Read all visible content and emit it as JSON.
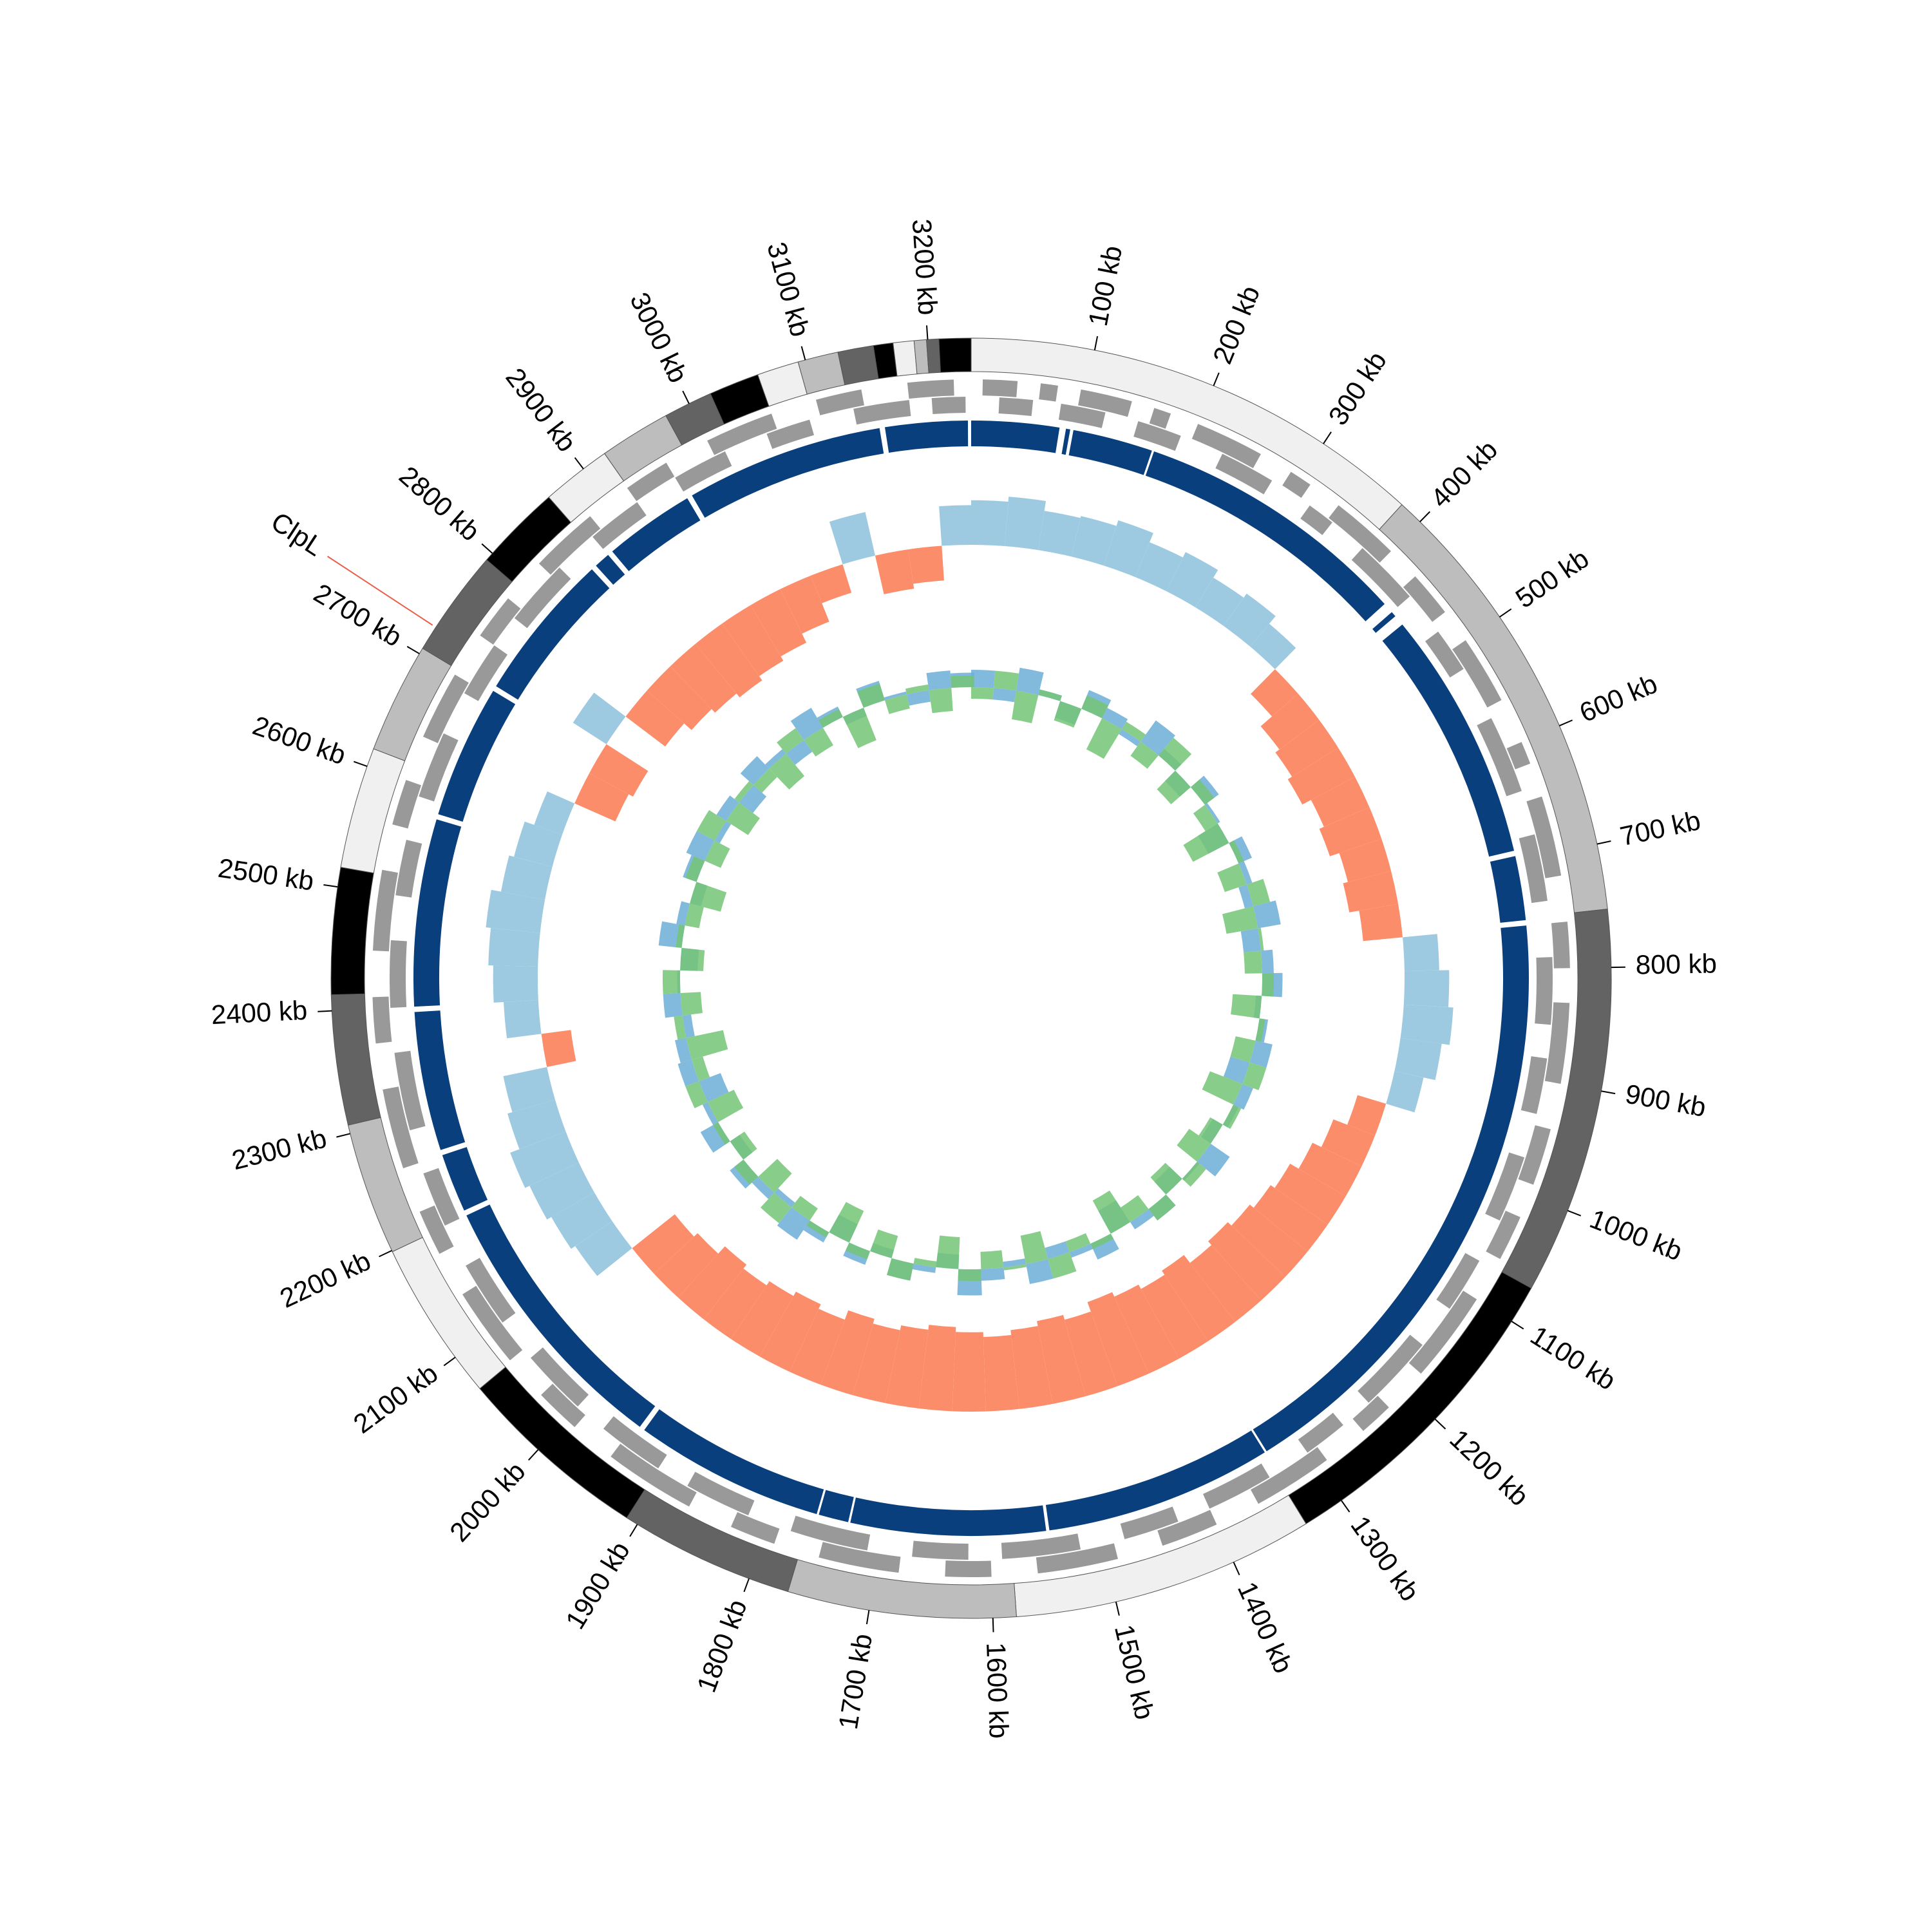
{
  "chart_data": {
    "type": "circos",
    "length": 3235,
    "ticks": [
      {
        "value": 100,
        "label": "100 kb"
      },
      {
        "value": 200,
        "label": "200 kb"
      },
      {
        "value": 300,
        "label": "300 kb"
      },
      {
        "value": 400,
        "label": "400 kb"
      },
      {
        "value": 500,
        "label": "500 kb"
      },
      {
        "value": 600,
        "label": "600 kb"
      },
      {
        "value": 700,
        "label": "700 kb"
      },
      {
        "value": 800,
        "label": "800 kb"
      },
      {
        "value": 900,
        "label": "900 kb"
      },
      {
        "value": 1000,
        "label": "1000 kb"
      },
      {
        "value": 1100,
        "label": "1100 kb"
      },
      {
        "value": 1200,
        "label": "1200 kb"
      },
      {
        "value": 1300,
        "label": "1300 kb"
      },
      {
        "value": 1400,
        "label": "1400 kb"
      },
      {
        "value": 1500,
        "label": "1500 kb"
      },
      {
        "value": 1600,
        "label": "1600 kb"
      },
      {
        "value": 1700,
        "label": "1700 kb"
      },
      {
        "value": 1800,
        "label": "1800 kb"
      },
      {
        "value": 1900,
        "label": "1900 kb"
      },
      {
        "value": 2000,
        "label": "2000 kb"
      },
      {
        "value": 2100,
        "label": "2100 kb"
      },
      {
        "value": 2200,
        "label": "2200 kb"
      },
      {
        "value": 2300,
        "label": "2300 kb"
      },
      {
        "value": 2400,
        "label": "2400 kb"
      },
      {
        "value": 2500,
        "label": "2500 kb"
      },
      {
        "value": 2600,
        "label": "2600 kb"
      },
      {
        "value": 2700,
        "label": "2700 kb"
      },
      {
        "value": 2800,
        "label": "2800 kb"
      },
      {
        "value": 2900,
        "label": "2900 kb"
      },
      {
        "value": 3000,
        "label": "3000 kb"
      },
      {
        "value": 3100,
        "label": "3100 kb"
      },
      {
        "value": 3200,
        "label": "3200 kb"
      }
    ],
    "ideogram": {
      "colors": [
        "#f0f0f0",
        "#bdbdbd",
        "#636363",
        "#000000"
      ],
      "segments": [
        [
          0,
          380
        ],
        [
          380,
          753
        ],
        [
          753,
          1069
        ],
        [
          1069,
          1334
        ],
        [
          1334,
          1581
        ],
        [
          1581,
          1767
        ],
        [
          1767,
          1910
        ],
        [
          1910,
          2068
        ],
        [
          2068,
          2199
        ],
        [
          2199,
          2307
        ],
        [
          2307,
          2413
        ],
        [
          2413,
          2516
        ],
        [
          2516,
          2615
        ],
        [
          2615,
          2705
        ],
        [
          2705,
          2793
        ],
        [
          2793,
          2864
        ],
        [
          2864,
          2921
        ],
        [
          2921,
          2979
        ],
        [
          2979,
          3019
        ],
        [
          3019,
          3060
        ],
        [
          3060,
          3094
        ],
        [
          3094,
          3127
        ],
        [
          3127,
          3156
        ],
        [
          3156,
          3172
        ],
        [
          3172,
          3189
        ],
        [
          3189,
          3199
        ],
        [
          3199,
          3209
        ],
        [
          3209,
          3235
        ]
      ]
    },
    "genes": {
      "color": "#999999",
      "forward": [
        [
          10,
          40
        ],
        [
          60,
          75
        ],
        [
          95,
          140
        ],
        [
          160,
          175
        ],
        [
          200,
          260
        ],
        [
          290,
          310
        ],
        [
          340,
          400
        ],
        [
          430,
          470
        ],
        [
          500,
          560
        ],
        [
          600,
          620
        ],
        [
          650,
          720
        ],
        [
          760,
          800
        ],
        [
          830,
          900
        ],
        [
          940,
          990
        ],
        [
          1020,
          1060
        ],
        [
          1100,
          1180
        ],
        [
          1220,
          1250
        ],
        [
          1290,
          1360
        ],
        [
          1400,
          1450
        ],
        [
          1490,
          1560
        ],
        [
          1600,
          1640
        ],
        [
          1680,
          1750
        ],
        [
          1790,
          1830
        ],
        [
          1870,
          1950
        ],
        [
          1990,
          2030
        ],
        [
          2070,
          2140
        ],
        [
          2180,
          2220
        ],
        [
          2260,
          2330
        ],
        [
          2370,
          2410
        ],
        [
          2450,
          2520
        ],
        [
          2560,
          2600
        ],
        [
          2640,
          2700
        ],
        [
          2740,
          2780
        ],
        [
          2820,
          2880
        ],
        [
          2920,
          2960
        ],
        [
          3000,
          3060
        ],
        [
          3100,
          3140
        ],
        [
          3180,
          3220
        ]
      ],
      "reverse": [
        [
          25,
          55
        ],
        [
          80,
          120
        ],
        [
          150,
          190
        ],
        [
          230,
          280
        ],
        [
          320,
          345
        ],
        [
          380,
          440
        ],
        [
          480,
          520
        ],
        [
          570,
          640
        ],
        [
          680,
          740
        ],
        [
          790,
          850
        ],
        [
          880,
          930
        ],
        [
          970,
          1030
        ],
        [
          1070,
          1120
        ],
        [
          1160,
          1230
        ],
        [
          1260,
          1300
        ],
        [
          1340,
          1400
        ],
        [
          1430,
          1480
        ],
        [
          1520,
          1590
        ],
        [
          1620,
          1670
        ],
        [
          1710,
          1780
        ],
        [
          1820,
          1880
        ],
        [
          1910,
          1970
        ],
        [
          2000,
          2060
        ],
        [
          2100,
          2160
        ],
        [
          2200,
          2250
        ],
        [
          2290,
          2360
        ],
        [
          2400,
          2460
        ],
        [
          2500,
          2550
        ],
        [
          2590,
          2650
        ],
        [
          2690,
          2740
        ],
        [
          2770,
          2830
        ],
        [
          2870,
          2920
        ],
        [
          2960,
          3010
        ],
        [
          3050,
          3090
        ],
        [
          3130,
          3180
        ],
        [
          3200,
          3230
        ]
      ]
    },
    "blocks": {
      "color": "#0a3f7e",
      "segments": [
        [
          0,
          82
        ],
        [
          88,
          92
        ],
        [
          95,
          170
        ],
        [
          172,
          430
        ],
        [
          440,
          445
        ],
        [
          455,
          690
        ],
        [
          695,
          755
        ],
        [
          760,
          1330
        ],
        [
          1332,
          1545
        ],
        [
          1548,
          1730
        ],
        [
          1732,
          1760
        ],
        [
          1762,
          1940
        ],
        [
          1945,
          2200
        ],
        [
          2205,
          2260
        ],
        [
          2265,
          2395
        ],
        [
          2400,
          2575
        ],
        [
          2580,
          2705
        ],
        [
          2710,
          2850
        ],
        [
          2855,
          2870
        ],
        [
          2875,
          2960
        ],
        [
          2965,
          3150
        ],
        [
          3155,
          3232
        ]
      ]
    },
    "bins": [
      0,
      40,
      80,
      120,
      160,
      200,
      240,
      280,
      320,
      360,
      400,
      440,
      480,
      520,
      560,
      600,
      640,
      680,
      720,
      760,
      800,
      840,
      880,
      920,
      960,
      1000,
      1040,
      1080,
      1120,
      1160,
      1200,
      1240,
      1280,
      1320,
      1360,
      1400,
      1440,
      1480,
      1520,
      1560,
      1600,
      1640,
      1680,
      1720,
      1760,
      1800,
      1840,
      1880,
      1920,
      1960,
      2000,
      2040,
      2080,
      2120,
      2160,
      2200,
      2240,
      2280,
      2320,
      2360,
      2400,
      2440,
      2480,
      2520,
      2560,
      2600,
      2640,
      2680,
      2720,
      2760,
      2800,
      2840,
      2880,
      2920,
      2960,
      3000,
      3040,
      3080,
      3120,
      3160,
      3200,
      3240
    ],
    "skew": {
      "ylim": [
        -1,
        1
      ],
      "positive_color": "#9ecae1",
      "negative_color": "#fc8d6a",
      "values": [
        0.45,
        0.5,
        0.4,
        0.42,
        0.48,
        0.38,
        0.44,
        0.35,
        0.4,
        0.3,
        -0.35,
        -0.5,
        -0.55,
        -0.6,
        -0.5,
        -0.55,
        -0.45,
        -0.5,
        -0.4,
        0.35,
        0.45,
        0.5,
        0.42,
        0.3,
        -0.3,
        -0.45,
        -0.55,
        -0.65,
        -0.7,
        -0.75,
        -0.8,
        -0.75,
        -0.85,
        -0.8,
        -0.85,
        -0.9,
        -0.8,
        -0.85,
        -0.8,
        -0.75,
        -0.8,
        -0.85,
        -0.8,
        -0.75,
        -0.8,
        -0.7,
        -0.75,
        -0.7,
        -0.65,
        -0.7,
        -0.6,
        -0.55,
        0.45,
        0.5,
        0.55,
        0.6,
        0.5,
        0.45,
        -0.3,
        0.35,
        0.45,
        0.5,
        0.55,
        0.45,
        0.4,
        0.3,
        -0.45,
        -0.5,
        0.4,
        -0.5,
        -0.6,
        -0.65,
        -0.7,
        -0.65,
        -0.6,
        -0.5,
        -0.3,
        0.45,
        -0.4,
        -0.35,
        0.4
      ]
    },
    "content": {
      "ylim": [
        -1,
        1
      ],
      "series": [
        {
          "color": "#6baed6",
          "values": [
            0.3,
            -0.2,
            0.4,
            0.1,
            -0.3,
            0.35,
            0.2,
            -0.1,
            0.45,
            0.15,
            -0.25,
            0.3,
            0.05,
            -0.4,
            0.25,
            0.1,
            -0.15,
            0.4,
            -0.3,
            0.2,
            0.35,
            -0.1,
            0.15,
            0.3,
            -0.35,
            0.2,
            0.1,
            -0.2,
            0.4,
            0.05,
            -0.3,
            0.25,
            0.15,
            -0.45,
            0.3,
            0.1,
            -0.2,
            0.35,
            -0.1,
            0.2,
            0.45,
            -0.25,
            0.1,
            0.3,
            -0.15,
            0.25,
            -0.35,
            0.2,
            0.4,
            -0.1,
            0.15,
            0.3,
            -0.2,
            0.35,
            0.1,
            -0.4,
            0.25,
            0.2,
            -0.15,
            0.3,
            0.05,
            -0.3,
            0.4,
            0.15,
            -0.2,
            0.25,
            0.35,
            -0.1,
            0.2,
            -0.3,
            0.3,
            0.1,
            -0.25,
            0.4,
            0.2,
            -0.15,
            0.35,
            0.05,
            -0.2,
            0.3,
            0.25
          ]
        },
        {
          "color": "#74c476",
          "values": [
            -0.2,
            0.3,
            -0.5,
            0.1,
            -0.35,
            0.25,
            -0.6,
            0.15,
            -0.3,
            0.4,
            -0.45,
            0.2,
            -0.25,
            -0.7,
            0.1,
            -0.4,
            0.3,
            -0.55,
            0.05,
            -0.3,
            0.2,
            -0.5,
            0.1,
            -0.35,
            0.3,
            -0.6,
            0.15,
            -0.25,
            -0.45,
            0.2,
            -0.4,
            0.25,
            -0.3,
            -0.65,
            0.1,
            -0.2,
            0.35,
            -0.5,
            0.05,
            -0.3,
            0.2,
            -0.55,
            -0.1,
            0.3,
            -0.4,
            0.15,
            -0.6,
            0.1,
            -0.25,
            0.35,
            -0.45,
            0.2,
            -0.3,
            0.1,
            -0.5,
            0.25,
            -0.2,
            -0.65,
            0.15,
            -0.35,
            0.3,
            -0.4,
            0.1,
            -0.25,
            -0.55,
            0.2,
            -0.3,
            0.35,
            -0.45,
            0.1,
            -0.2,
            -0.5,
            0.25,
            -0.35,
            0.15,
            -0.6,
            0.3,
            -0.25,
            0.1,
            -0.4,
            0.2
          ]
        }
      ]
    },
    "annotations": [
      {
        "label": "ClpL",
        "position": 2725,
        "label_color": "#3a7fc1",
        "line_color": "#e8604a"
      }
    ]
  }
}
